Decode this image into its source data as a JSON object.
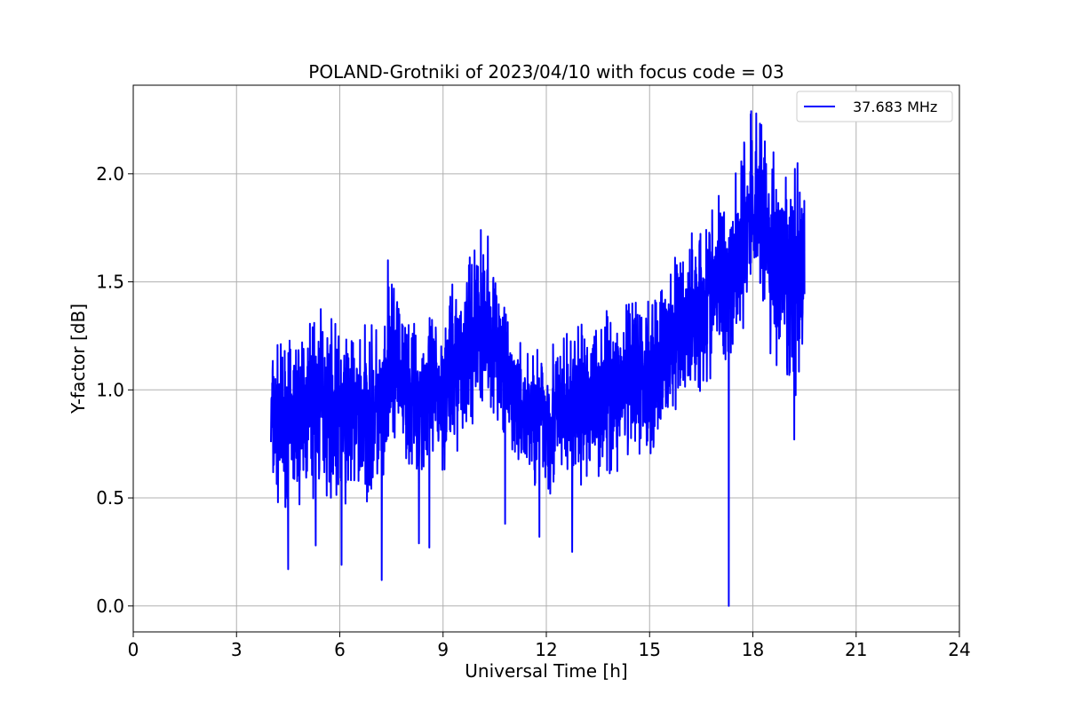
{
  "chart_data": {
    "type": "line",
    "title": "POLAND-Grotniki of 2023/04/10 with focus code = 03",
    "xlabel": "Universal Time [h]",
    "ylabel": "Y-factor [dB]",
    "xlim": [
      0,
      24
    ],
    "ylim": [
      -0.12,
      2.41
    ],
    "xticks": [
      0,
      3,
      6,
      9,
      12,
      15,
      18,
      21,
      24
    ],
    "xtick_labels": [
      "0",
      "3",
      "6",
      "9",
      "12",
      "15",
      "18",
      "21",
      "24"
    ],
    "yticks": [
      0.0,
      0.5,
      1.0,
      1.5,
      2.0
    ],
    "ytick_labels": [
      "0.0",
      "0.5",
      "1.0",
      "1.5",
      "2.0"
    ],
    "grid": true,
    "legend_position": "top-right",
    "series": [
      {
        "name": "37.683 MHz",
        "color": "#0000ff",
        "x_range": [
          4.0,
          19.5
        ],
        "envelope": {
          "x": [
            4.0,
            4.5,
            5.0,
            5.5,
            6.0,
            6.5,
            7.0,
            7.3,
            7.5,
            7.8,
            8.0,
            8.5,
            9.0,
            9.3,
            9.6,
            10.0,
            10.3,
            10.6,
            10.9,
            11.2,
            11.6,
            12.0,
            12.5,
            13.0,
            13.5,
            14.0,
            14.5,
            15.0,
            15.5,
            16.0,
            16.5,
            17.0,
            17.5,
            17.9,
            18.2,
            18.5,
            18.8,
            19.1,
            19.5
          ],
          "upper": [
            1.2,
            1.22,
            1.32,
            1.38,
            1.28,
            1.3,
            1.3,
            1.28,
            1.6,
            1.38,
            1.3,
            1.32,
            1.38,
            1.5,
            1.55,
            1.74,
            1.7,
            1.5,
            1.3,
            1.22,
            1.2,
            1.22,
            1.25,
            1.3,
            1.35,
            1.38,
            1.4,
            1.45,
            1.55,
            1.68,
            1.78,
            1.9,
            2.0,
            2.28,
            2.25,
            2.1,
            2.0,
            2.05,
            1.96
          ],
          "lower": [
            0.5,
            0.45,
            0.48,
            0.52,
            0.48,
            0.46,
            0.5,
            0.45,
            0.72,
            0.72,
            0.62,
            0.6,
            0.62,
            0.68,
            0.78,
            0.88,
            0.95,
            0.85,
            0.72,
            0.62,
            0.55,
            0.5,
            0.52,
            0.55,
            0.6,
            0.62,
            0.65,
            0.7,
            0.8,
            0.92,
            1.0,
            1.1,
            1.2,
            1.35,
            1.4,
            1.15,
            1.05,
            0.85,
            1.2
          ]
        },
        "spikes_down": [
          [
            4.5,
            0.17
          ],
          [
            6.05,
            0.19
          ],
          [
            7.22,
            0.12
          ],
          [
            8.3,
            0.29
          ],
          [
            8.6,
            0.27
          ],
          [
            5.3,
            0.28
          ],
          [
            10.8,
            0.38
          ],
          [
            11.8,
            0.32
          ],
          [
            12.75,
            0.25
          ],
          [
            17.3,
            0.0
          ],
          [
            19.2,
            0.77
          ]
        ],
        "spikes_up": [
          [
            7.4,
            1.6
          ],
          [
            10.1,
            1.74
          ],
          [
            10.3,
            1.71
          ],
          [
            17.95,
            2.29
          ],
          [
            18.1,
            2.28
          ],
          [
            18.35,
            2.15
          ],
          [
            18.6,
            2.1
          ],
          [
            19.3,
            2.05
          ]
        ]
      }
    ]
  }
}
